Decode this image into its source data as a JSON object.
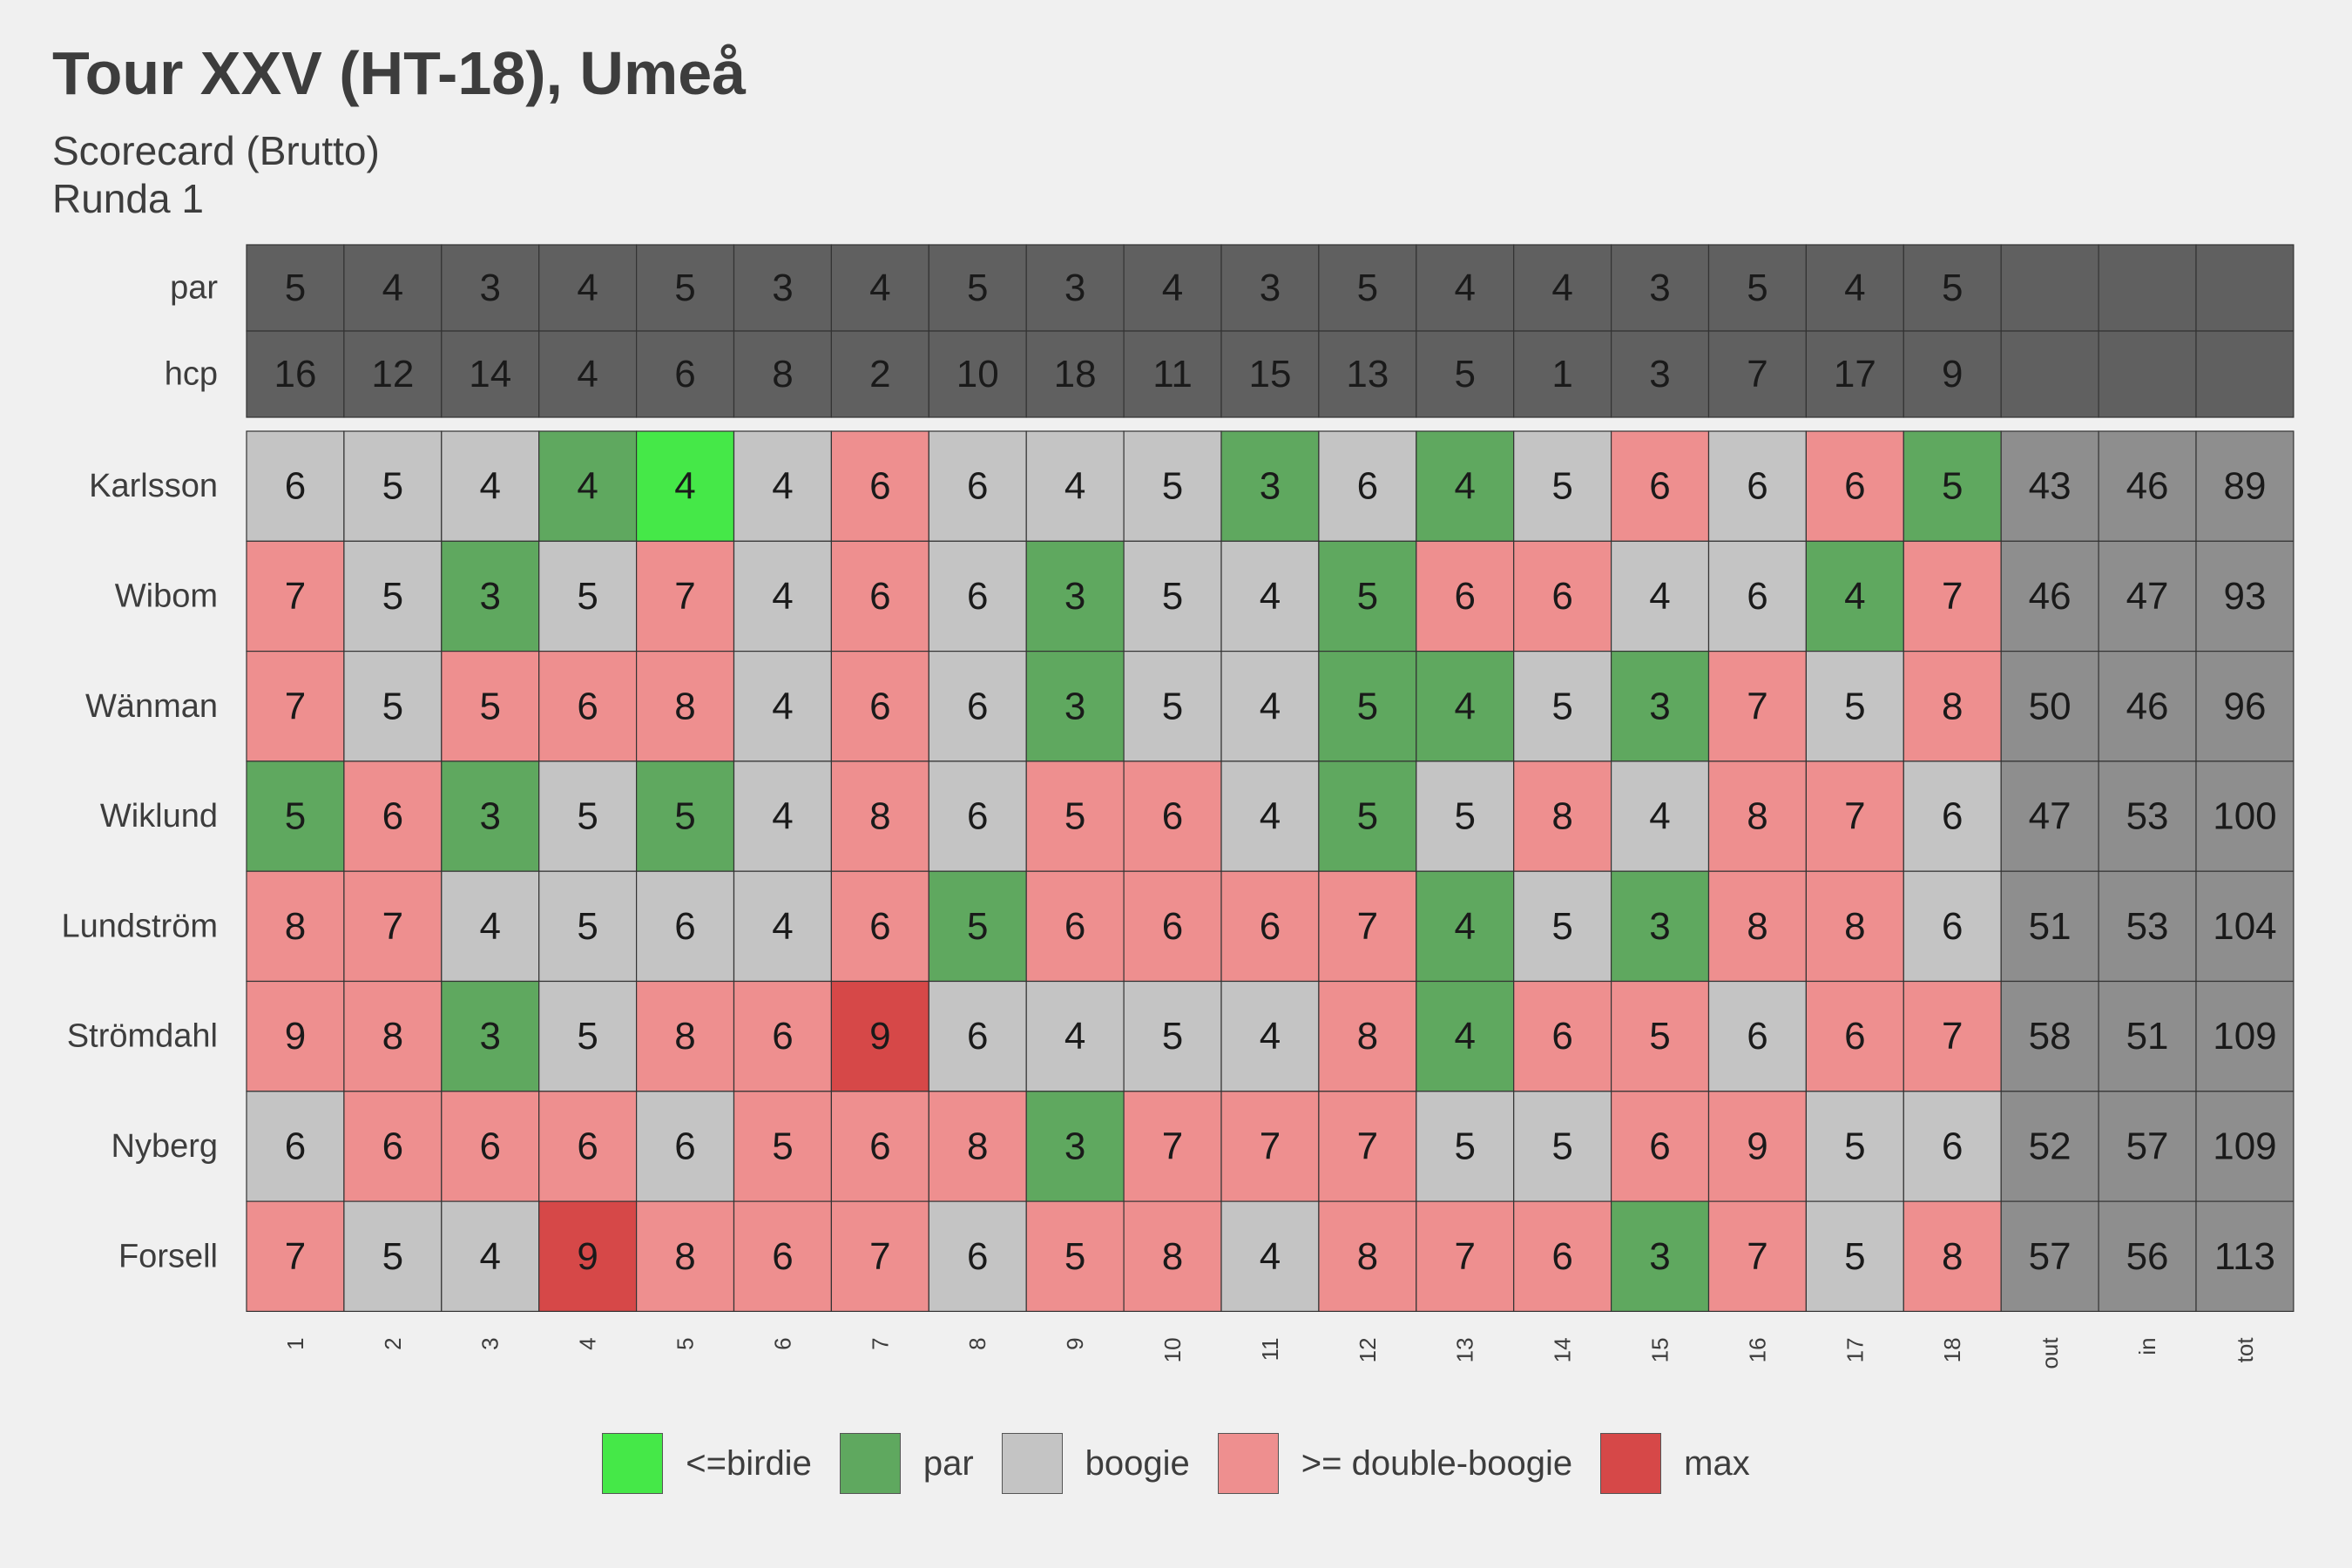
{
  "title": "Tour XXV (HT-18), Umeå",
  "subtitle": "Scorecard (Brutto)",
  "subtitle2": "Runda 1",
  "chart_data": {
    "type": "heatmap",
    "columns": [
      "1",
      "2",
      "3",
      "4",
      "5",
      "6",
      "7",
      "8",
      "9",
      "10",
      "11",
      "12",
      "13",
      "14",
      "15",
      "16",
      "17",
      "18",
      "out",
      "in",
      "tot"
    ],
    "header_rows": [
      {
        "label": "par",
        "values": [
          5,
          4,
          3,
          4,
          5,
          3,
          4,
          5,
          3,
          4,
          3,
          5,
          4,
          4,
          3,
          5,
          4,
          5
        ]
      },
      {
        "label": "hcp",
        "values": [
          16,
          12,
          14,
          4,
          6,
          8,
          2,
          10,
          18,
          11,
          15,
          13,
          5,
          1,
          3,
          7,
          17,
          9
        ]
      }
    ],
    "players": [
      {
        "name": "Karlsson",
        "scores": [
          6,
          5,
          4,
          4,
          4,
          4,
          6,
          6,
          4,
          5,
          3,
          6,
          4,
          5,
          6,
          6,
          6,
          5
        ],
        "out": 43,
        "in": 46,
        "tot": 89
      },
      {
        "name": "Wibom",
        "scores": [
          7,
          5,
          3,
          5,
          7,
          4,
          6,
          6,
          3,
          5,
          4,
          5,
          6,
          6,
          4,
          6,
          4,
          7
        ],
        "out": 46,
        "in": 47,
        "tot": 93
      },
      {
        "name": "Wänman",
        "scores": [
          7,
          5,
          5,
          6,
          8,
          4,
          6,
          6,
          3,
          5,
          4,
          5,
          4,
          5,
          3,
          7,
          5,
          8
        ],
        "out": 50,
        "in": 46,
        "tot": 96
      },
      {
        "name": "Wiklund",
        "scores": [
          5,
          6,
          3,
          5,
          5,
          4,
          8,
          6,
          5,
          6,
          4,
          5,
          5,
          8,
          4,
          8,
          7,
          6
        ],
        "out": 47,
        "in": 53,
        "tot": 100
      },
      {
        "name": "Lundström",
        "scores": [
          8,
          7,
          4,
          5,
          6,
          4,
          6,
          5,
          6,
          6,
          6,
          7,
          4,
          5,
          3,
          8,
          8,
          6
        ],
        "out": 51,
        "in": 53,
        "tot": 104
      },
      {
        "name": "Strömdahl",
        "scores": [
          9,
          8,
          3,
          5,
          8,
          6,
          9,
          6,
          4,
          5,
          4,
          8,
          4,
          6,
          5,
          6,
          6,
          7
        ],
        "out": 58,
        "in": 51,
        "tot": 109
      },
      {
        "name": "Nyberg",
        "scores": [
          6,
          6,
          6,
          6,
          6,
          5,
          6,
          8,
          3,
          7,
          7,
          7,
          5,
          5,
          6,
          9,
          5,
          6
        ],
        "out": 52,
        "in": 57,
        "tot": 109
      },
      {
        "name": "Forsell",
        "scores": [
          7,
          5,
          4,
          9,
          8,
          6,
          7,
          6,
          5,
          8,
          4,
          8,
          7,
          6,
          3,
          7,
          5,
          8
        ],
        "out": 57,
        "in": 56,
        "tot": 113
      }
    ],
    "legend": [
      {
        "label": "<=birdie",
        "color": "#45e848"
      },
      {
        "label": "par",
        "color": "#5fa85f"
      },
      {
        "label": "boogie",
        "color": "#c4c4c4"
      },
      {
        "label": ">= double-boogie",
        "color": "#ee8f8f"
      },
      {
        "label": "max",
        "color": "#d64848"
      }
    ],
    "colors": {
      "header": "#606060",
      "totals": "#8e8e8e",
      "background": "#f0f0f0",
      "text": "#3d3d3d"
    }
  }
}
